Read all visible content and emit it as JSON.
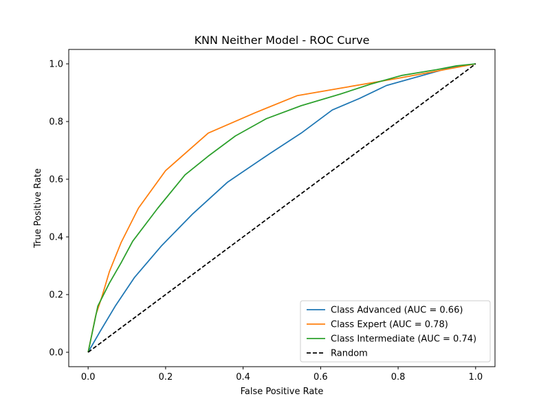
{
  "chart_data": {
    "type": "line",
    "title": "KNN Neither Model - ROC Curve",
    "xlabel": "False Positive Rate",
    "ylabel": "True Positive Rate",
    "xlim": [
      -0.05,
      1.05
    ],
    "ylim": [
      -0.05,
      1.05
    ],
    "xticks": [
      "0.0",
      "0.2",
      "0.4",
      "0.6",
      "0.8",
      "1.0"
    ],
    "yticks": [
      "0.0",
      "0.2",
      "0.4",
      "0.6",
      "0.8",
      "1.0"
    ],
    "grid": false,
    "legend_position": "lower-right",
    "series": [
      {
        "name": "Class Advanced (AUC = 0.66)",
        "color": "#1f77b4",
        "dash": "solid",
        "x": [
          0.0,
          0.03,
          0.07,
          0.12,
          0.19,
          0.27,
          0.36,
          0.47,
          0.55,
          0.63,
          0.7,
          0.77,
          0.85,
          0.93,
          1.0
        ],
        "y": [
          0.0,
          0.07,
          0.16,
          0.26,
          0.37,
          0.48,
          0.59,
          0.69,
          0.76,
          0.84,
          0.88,
          0.925,
          0.955,
          0.985,
          1.0
        ]
      },
      {
        "name": "Class Expert (AUC = 0.78)",
        "color": "#ff7f0e",
        "dash": "solid",
        "x": [
          0.0,
          0.02,
          0.035,
          0.055,
          0.085,
          0.13,
          0.2,
          0.31,
          0.43,
          0.54,
          0.67,
          0.8,
          0.9,
          1.0
        ],
        "y": [
          0.0,
          0.13,
          0.19,
          0.28,
          0.38,
          0.5,
          0.63,
          0.76,
          0.83,
          0.89,
          0.92,
          0.95,
          0.975,
          1.0
        ]
      },
      {
        "name": "Class Intermediate (AUC = 0.74)",
        "color": "#2ca02c",
        "dash": "solid",
        "x": [
          0.0,
          0.025,
          0.055,
          0.085,
          0.115,
          0.18,
          0.25,
          0.31,
          0.38,
          0.46,
          0.55,
          0.65,
          0.73,
          0.81,
          0.9,
          0.95,
          1.0
        ],
        "y": [
          0.0,
          0.16,
          0.24,
          0.31,
          0.385,
          0.5,
          0.615,
          0.68,
          0.75,
          0.81,
          0.855,
          0.895,
          0.93,
          0.96,
          0.98,
          0.993,
          1.0
        ]
      },
      {
        "name": "Random",
        "color": "#000000",
        "dash": "dashed",
        "x": [
          0.0,
          1.0
        ],
        "y": [
          0.0,
          1.0
        ]
      }
    ]
  }
}
